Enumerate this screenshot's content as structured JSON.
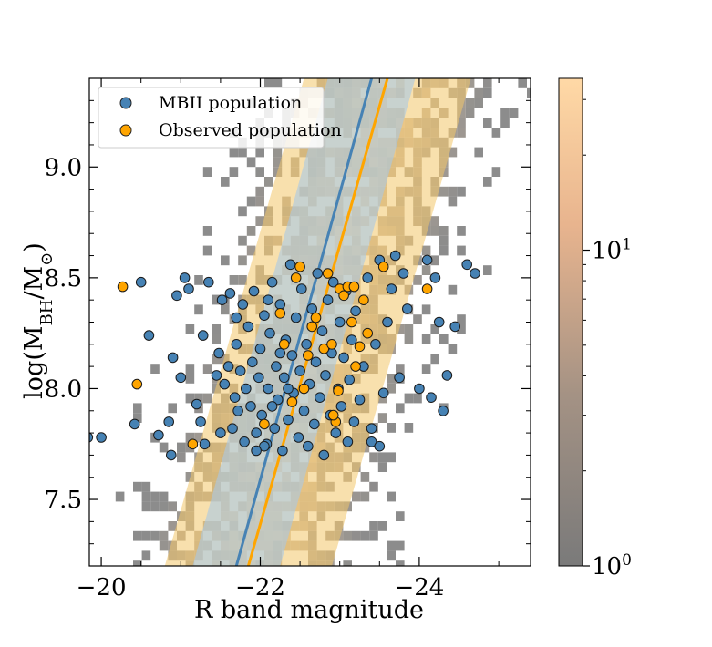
{
  "chart_data": {
    "type": "scatter",
    "xlabel": "R band magnitude",
    "ylabel_main": "log(M",
    "ylabel_sub1": "BH",
    "ylabel_mid": "/M",
    "ylabel_sub2": "⊙",
    "ylabel_end": ")",
    "xlim": [
      -19.85,
      -25.4
    ],
    "ylim": [
      7.2,
      9.4
    ],
    "x_ticks": [
      {
        "value": -20,
        "label": "−20"
      },
      {
        "value": -22,
        "label": "−22"
      },
      {
        "value": -24,
        "label": "−24"
      }
    ],
    "y_ticks": [
      {
        "value": 7.5,
        "label": "7.5"
      },
      {
        "value": 8.0,
        "label": "8.0"
      },
      {
        "value": 8.5,
        "label": "8.5"
      },
      {
        "value": 9.0,
        "label": "9.0"
      }
    ],
    "legend": {
      "placement": "top-left",
      "entries": [
        {
          "label": "MBII population",
          "color": "#4682b4"
        },
        {
          "label": "Observed population",
          "color": "#ffa500"
        }
      ]
    },
    "colorbar": {
      "scale": "log",
      "range": [
        1,
        35
      ],
      "ticks": [
        {
          "value": 1,
          "base": "10",
          "exp": "0"
        },
        {
          "value": 10,
          "base": "10",
          "exp": "1"
        }
      ],
      "color_low": "#808080",
      "color_high": "#ffd6a0"
    },
    "fits": [
      {
        "name": "MBII fit",
        "color": "#4682b4",
        "band_color": "#a9c8e6",
        "x": [
          -21.7,
          -23.4
        ],
        "y": [
          7.2,
          9.4
        ],
        "band_width_mag": 0.55
      },
      {
        "name": "Observed fit",
        "color": "#ffa500",
        "band_color": "#f2c66a",
        "x": [
          -21.85,
          -23.6
        ],
        "y": [
          7.2,
          9.4
        ],
        "band_width_mag": 1.05
      }
    ],
    "series": [
      {
        "name": "MBII population",
        "color": "#4682b4",
        "points": [
          [
            -19.83,
            7.78
          ],
          [
            -20.0,
            7.78
          ],
          [
            -20.6,
            8.24
          ],
          [
            -20.5,
            8.48
          ],
          [
            -20.42,
            7.84
          ],
          [
            -20.72,
            7.79
          ],
          [
            -20.85,
            7.85
          ],
          [
            -20.88,
            7.7
          ],
          [
            -20.9,
            8.14
          ],
          [
            -20.95,
            8.42
          ],
          [
            -21.0,
            8.05
          ],
          [
            -21.05,
            8.5
          ],
          [
            -21.1,
            8.45
          ],
          [
            -21.2,
            7.93
          ],
          [
            -21.25,
            7.85
          ],
          [
            -21.3,
            7.75
          ],
          [
            -21.28,
            8.24
          ],
          [
            -21.35,
            8.48
          ],
          [
            -21.45,
            8.06
          ],
          [
            -21.48,
            8.16
          ],
          [
            -21.5,
            7.8
          ],
          [
            -21.52,
            8.4
          ],
          [
            -21.55,
            8.02
          ],
          [
            -21.6,
            8.1
          ],
          [
            -21.62,
            8.43
          ],
          [
            -21.65,
            7.82
          ],
          [
            -21.68,
            7.96
          ],
          [
            -21.7,
            8.2
          ],
          [
            -21.72,
            7.9
          ],
          [
            -21.75,
            8.08
          ],
          [
            -21.78,
            8.38
          ],
          [
            -21.8,
            7.76
          ],
          [
            -21.82,
            8.0
          ],
          [
            -21.85,
            8.28
          ],
          [
            -21.88,
            7.92
          ],
          [
            -21.9,
            8.12
          ],
          [
            -21.92,
            8.44
          ],
          [
            -21.95,
            7.8
          ],
          [
            -21.98,
            8.05
          ],
          [
            -22.0,
            8.18
          ],
          [
            -22.02,
            7.88
          ],
          [
            -22.05,
            8.33
          ],
          [
            -22.08,
            7.75
          ],
          [
            -22.1,
            8.0
          ],
          [
            -22.12,
            8.25
          ],
          [
            -22.15,
            8.48
          ],
          [
            -22.18,
            7.82
          ],
          [
            -22.2,
            8.1
          ],
          [
            -22.22,
            7.95
          ],
          [
            -22.25,
            8.38
          ],
          [
            -22.28,
            7.72
          ],
          [
            -22.3,
            8.05
          ],
          [
            -22.32,
            8.22
          ],
          [
            -22.35,
            7.86
          ],
          [
            -22.38,
            8.56
          ],
          [
            -22.4,
            8.15
          ],
          [
            -22.42,
            7.98
          ],
          [
            -22.45,
            8.32
          ],
          [
            -22.48,
            7.78
          ],
          [
            -22.5,
            8.08
          ],
          [
            -22.52,
            8.45
          ],
          [
            -22.55,
            7.9
          ],
          [
            -22.58,
            8.2
          ],
          [
            -22.6,
            7.74
          ],
          [
            -22.62,
            8.02
          ],
          [
            -22.65,
            8.36
          ],
          [
            -22.68,
            7.84
          ],
          [
            -22.7,
            8.12
          ],
          [
            -22.72,
            8.52
          ],
          [
            -22.75,
            7.96
          ],
          [
            -22.78,
            8.26
          ],
          [
            -22.8,
            7.7
          ],
          [
            -22.82,
            8.06
          ],
          [
            -22.85,
            8.4
          ],
          [
            -22.88,
            7.88
          ],
          [
            -22.9,
            8.16
          ],
          [
            -22.92,
            8.48
          ],
          [
            -22.95,
            7.8
          ],
          [
            -22.98,
            8.0
          ],
          [
            -23.0,
            8.3
          ],
          [
            -23.02,
            7.92
          ],
          [
            -23.05,
            8.14
          ],
          [
            -23.08,
            8.44
          ],
          [
            -23.1,
            7.76
          ],
          [
            -23.12,
            8.04
          ],
          [
            -23.15,
            8.22
          ],
          [
            -23.18,
            7.85
          ],
          [
            -23.2,
            8.35
          ],
          [
            -23.25,
            7.95
          ],
          [
            -23.3,
            8.1
          ],
          [
            -23.35,
            8.5
          ],
          [
            -23.4,
            7.82
          ],
          [
            -23.45,
            8.2
          ],
          [
            -23.5,
            8.58
          ],
          [
            -23.55,
            7.98
          ],
          [
            -23.6,
            8.3
          ],
          [
            -23.65,
            8.45
          ],
          [
            -23.7,
            8.6
          ],
          [
            -23.75,
            8.05
          ],
          [
            -23.8,
            8.52
          ],
          [
            -23.85,
            8.36
          ],
          [
            -24.0,
            8.0
          ],
          [
            -24.1,
            8.58
          ],
          [
            -24.15,
            7.96
          ],
          [
            -24.2,
            8.5
          ],
          [
            -24.25,
            8.3
          ],
          [
            -24.3,
            7.9
          ],
          [
            -24.35,
            8.06
          ],
          [
            -24.45,
            8.28
          ],
          [
            -24.6,
            8.56
          ],
          [
            -24.7,
            8.52
          ],
          [
            -23.4,
            7.76
          ],
          [
            -23.5,
            7.74
          ],
          [
            -22.05,
            7.74
          ],
          [
            -21.95,
            7.72
          ],
          [
            -22.15,
            7.92
          ],
          [
            -22.35,
            8.0
          ],
          [
            -22.25,
            8.16
          ],
          [
            -22.1,
            8.4
          ],
          [
            -21.7,
            8.32
          ]
        ]
      },
      {
        "name": "Observed population",
        "color": "#ffa500",
        "points": [
          [
            -20.27,
            8.46
          ],
          [
            -20.45,
            8.02
          ],
          [
            -21.15,
            7.75
          ],
          [
            -22.05,
            7.84
          ],
          [
            -22.25,
            8.34
          ],
          [
            -22.3,
            8.2
          ],
          [
            -22.4,
            7.94
          ],
          [
            -22.45,
            8.5
          ],
          [
            -22.5,
            8.55
          ],
          [
            -22.6,
            8.15
          ],
          [
            -22.65,
            8.28
          ],
          [
            -22.7,
            8.32
          ],
          [
            -22.8,
            8.18
          ],
          [
            -22.85,
            8.52
          ],
          [
            -22.9,
            8.2
          ],
          [
            -22.95,
            7.85
          ],
          [
            -22.98,
            7.99
          ],
          [
            -23.0,
            8.45
          ],
          [
            -23.05,
            8.42
          ],
          [
            -23.1,
            8.46
          ],
          [
            -23.15,
            8.3
          ],
          [
            -23.2,
            8.1
          ],
          [
            -23.3,
            8.4
          ],
          [
            -23.35,
            8.25
          ],
          [
            -23.55,
            8.55
          ],
          [
            -24.1,
            8.45
          ],
          [
            -22.92,
            7.88
          ],
          [
            -23.18,
            8.46
          ],
          [
            -23.25,
            8.19
          ],
          [
            -22.55,
            8.0
          ]
        ]
      }
    ]
  }
}
